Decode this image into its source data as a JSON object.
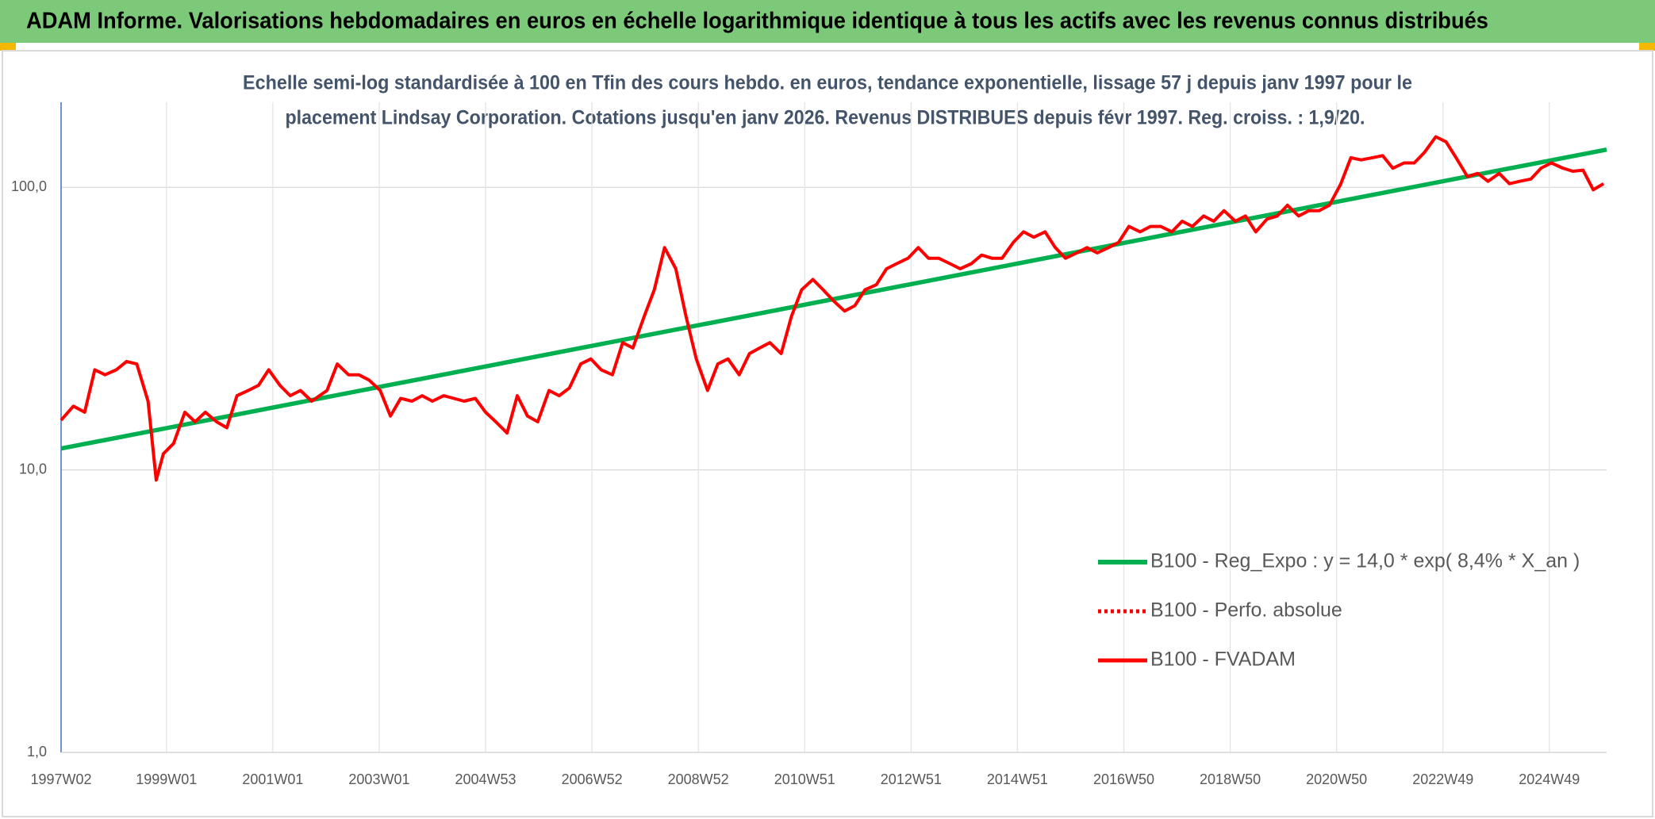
{
  "chart_data": {
    "type": "line",
    "title": "ADAM Informe. Valorisations hebdomadaires en euros en échelle logarithmique identique à tous les actifs avec les revenus connus distribués",
    "subtitle": [
      "Echelle semi-log standardisée à 100 en Tfin des cours hebdo. en euros, tendance exponentielle, lissage 57 j depuis janv 1997 pour le",
      "placement Lindsay Corporation. Cotations jusqu'en janv 2026. Revenus DISTRIBUES depuis févr 1997. Reg. croiss. : 1,9/20."
    ],
    "xlim": [
      0,
      1511
    ],
    "xticks": [
      {
        "value": 0,
        "label": "1997W02"
      },
      {
        "value": 103,
        "label": "1999W01"
      },
      {
        "value": 207,
        "label": "2001W01"
      },
      {
        "value": 311,
        "label": "2003W01"
      },
      {
        "value": 415,
        "label": "2004W53"
      },
      {
        "value": 519,
        "label": "2006W52"
      },
      {
        "value": 623,
        "label": "2008W52"
      },
      {
        "value": 727,
        "label": "2010W51"
      },
      {
        "value": 831,
        "label": "2012W51"
      },
      {
        "value": 935,
        "label": "2014W51"
      },
      {
        "value": 1039,
        "label": "2016W50"
      },
      {
        "value": 1143,
        "label": "2018W50"
      },
      {
        "value": 1247,
        "label": "2020W50"
      },
      {
        "value": 1351,
        "label": "2022W49"
      },
      {
        "value": 1455,
        "label": "2024W49"
      }
    ],
    "ylim": [
      1,
      200
    ],
    "yscale": "log",
    "yticks": [
      {
        "value": 1,
        "label": "1,0"
      },
      {
        "value": 10,
        "label": "10,0"
      },
      {
        "value": 100,
        "label": "100,0"
      }
    ],
    "grid": true,
    "legend": "lower right",
    "series": [
      {
        "name": "B100 - Reg_Expo : y = 14,0 * exp( 8,4% *  X_an )",
        "color": "#00b050",
        "style": "solid",
        "x": [
          0,
          1511
        ],
        "values": [
          11.9,
          136
        ]
      },
      {
        "name": "B100 - Perfo. absolue",
        "color": "#ff0000",
        "style": "dotted",
        "x": [],
        "values": []
      },
      {
        "name": "B100 - FVADAM",
        "color": "#ff0000",
        "style": "solid",
        "x": [
          0,
          12,
          23,
          33,
          43,
          54,
          64,
          74,
          85,
          93,
          100,
          110,
          121,
          131,
          141,
          152,
          162,
          172,
          183,
          193,
          203,
          214,
          224,
          234,
          245,
          260,
          270,
          281,
          291,
          301,
          312,
          322,
          332,
          343,
          353,
          363,
          374,
          384,
          394,
          405,
          415,
          425,
          436,
          446,
          456,
          466,
          477,
          487,
          497,
          508,
          518,
          528,
          539,
          549,
          559,
          570,
          580,
          590,
          601,
          611,
          621,
          632,
          642,
          652,
          663,
          673,
          683,
          693,
          704,
          714,
          724,
          735,
          745,
          755,
          766,
          776,
          786,
          797,
          807,
          817,
          828,
          838,
          848,
          858,
          869,
          879,
          890,
          900,
          910,
          920,
          931,
          941,
          951,
          962,
          972,
          982,
          993,
          1003,
          1013,
          1024,
          1034,
          1044,
          1055,
          1065,
          1075,
          1086,
          1096,
          1106,
          1117,
          1127,
          1137,
          1148,
          1158,
          1168,
          1179,
          1189,
          1199,
          1210,
          1220,
          1230,
          1240,
          1251,
          1261,
          1271,
          1282,
          1292,
          1302,
          1313,
          1323,
          1333,
          1344,
          1354,
          1364,
          1375,
          1385,
          1395,
          1406,
          1416,
          1426,
          1437,
          1447,
          1457,
          1468,
          1478,
          1488,
          1498,
          1508
        ],
        "values": [
          15,
          16.8,
          16,
          22.6,
          21.7,
          22.6,
          24.2,
          23.7,
          17.5,
          9.2,
          11.4,
          12.4,
          16,
          14.8,
          16,
          14.8,
          14.1,
          18.3,
          19.1,
          19.9,
          22.6,
          19.9,
          18.3,
          19.1,
          17.5,
          19.1,
          23.7,
          21.7,
          21.7,
          20.8,
          19.1,
          15.5,
          17.9,
          17.5,
          18.3,
          17.5,
          18.3,
          17.9,
          17.5,
          17.9,
          16,
          14.8,
          13.5,
          18.3,
          15.5,
          14.8,
          19.1,
          18.3,
          19.5,
          23.7,
          24.7,
          22.6,
          21.7,
          28.2,
          27,
          34.9,
          43.4,
          61.2,
          51.5,
          34.9,
          24.7,
          19.1,
          23.7,
          24.7,
          21.7,
          25.8,
          27,
          28.2,
          25.8,
          34.9,
          43.4,
          47.2,
          43.4,
          39.7,
          36.5,
          38.1,
          43.4,
          45.2,
          51.5,
          53.7,
          56.1,
          61.2,
          56.1,
          56.1,
          53.7,
          51.5,
          53.7,
          57.6,
          56.1,
          56.1,
          63.9,
          69.6,
          66.6,
          69.6,
          61.2,
          56.1,
          58.6,
          61.2,
          58.6,
          61.2,
          63.9,
          72.7,
          69.6,
          72.7,
          72.7,
          69.6,
          75.9,
          72.7,
          79.2,
          75.9,
          82.7,
          75.9,
          79.2,
          69.6,
          77.2,
          79.2,
          86.4,
          79.2,
          82.7,
          82.7,
          86.4,
          102.6,
          127.3,
          125,
          127.3,
          129.5,
          116.8,
          122,
          122,
          133,
          151,
          145,
          127,
          109,
          112,
          105,
          112,
          103,
          105,
          107,
          117,
          122,
          117,
          114,
          115,
          98,
          103
        ]
      }
    ]
  }
}
